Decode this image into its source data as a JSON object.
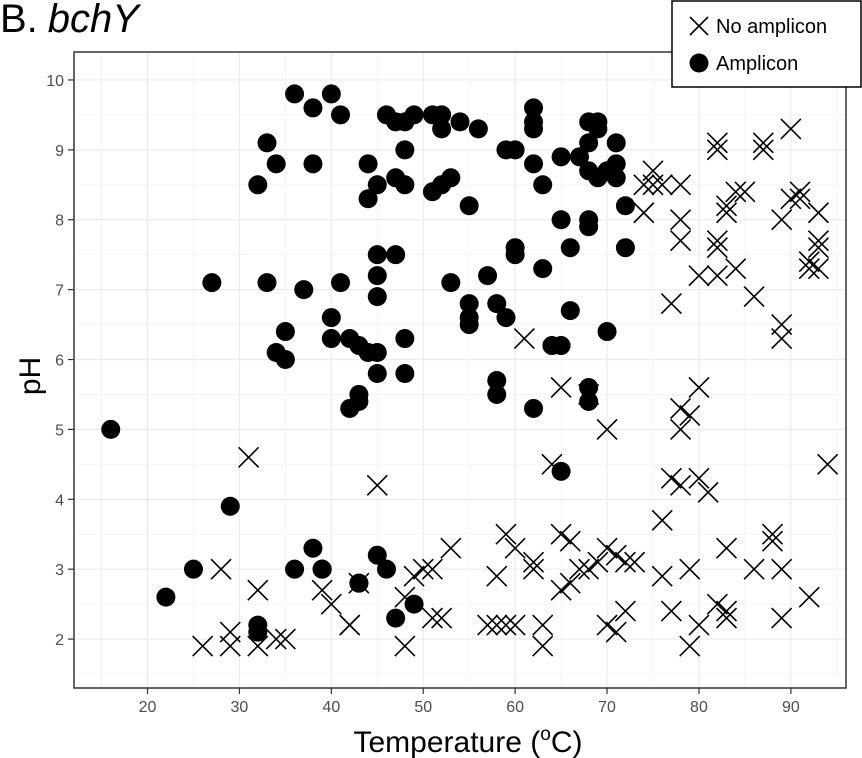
{
  "chart_data": {
    "type": "scatter",
    "title_prefix": "B.",
    "title_gene": "bchY",
    "xlabel": "Temperature (",
    "xlabel_sup": "o",
    "xlabel_unit": "C)",
    "ylabel": "pH",
    "xlim": [
      12,
      96
    ],
    "ylim": [
      1.3,
      10.4
    ],
    "xticks": [
      20,
      30,
      40,
      50,
      60,
      70,
      80,
      90
    ],
    "yticks": [
      2,
      3,
      4,
      5,
      6,
      7,
      8,
      9,
      10
    ],
    "grid": true,
    "legend_position": "top-right",
    "series": [
      {
        "name": "No amplicon",
        "marker": "x",
        "color": "#000000",
        "points": [
          [
            26,
            1.9
          ],
          [
            28,
            3.0
          ],
          [
            29,
            2.1
          ],
          [
            29,
            1.9
          ],
          [
            31,
            4.6
          ],
          [
            32,
            2.7
          ],
          [
            32,
            1.9
          ],
          [
            34,
            2.0
          ],
          [
            35,
            2.0
          ],
          [
            39,
            2.7
          ],
          [
            40,
            2.5
          ],
          [
            42,
            2.2
          ],
          [
            42,
            2.2
          ],
          [
            43,
            2.8
          ],
          [
            45,
            4.2
          ],
          [
            48,
            2.6
          ],
          [
            48,
            1.9
          ],
          [
            49,
            2.9
          ],
          [
            50,
            3.0
          ],
          [
            51,
            3.0
          ],
          [
            51,
            2.3
          ],
          [
            52,
            2.3
          ],
          [
            53,
            3.3
          ],
          [
            57,
            2.2
          ],
          [
            58,
            2.9
          ],
          [
            58,
            2.2
          ],
          [
            59,
            3.5
          ],
          [
            59,
            2.2
          ],
          [
            60,
            2.2
          ],
          [
            60,
            3.3
          ],
          [
            61,
            6.3
          ],
          [
            62,
            3.1
          ],
          [
            62,
            3.0
          ],
          [
            63,
            2.2
          ],
          [
            63,
            1.9
          ],
          [
            64,
            4.5
          ],
          [
            65,
            5.6
          ],
          [
            65,
            3.5
          ],
          [
            66,
            3.4
          ],
          [
            65,
            2.7
          ],
          [
            66,
            2.8
          ],
          [
            67,
            3.0
          ],
          [
            68,
            3.0
          ],
          [
            68,
            5.5
          ],
          [
            69,
            3.1
          ],
          [
            70,
            3.3
          ],
          [
            70,
            5.0
          ],
          [
            70,
            2.2
          ],
          [
            71,
            3.2
          ],
          [
            71,
            2.1
          ],
          [
            72,
            3.1
          ],
          [
            72,
            2.4
          ],
          [
            73,
            3.1
          ],
          [
            74,
            8.5
          ],
          [
            74,
            8.1
          ],
          [
            75,
            8.5
          ],
          [
            75,
            8.7
          ],
          [
            76,
            8.5
          ],
          [
            76,
            3.7
          ],
          [
            76,
            2.9
          ],
          [
            77,
            4.3
          ],
          [
            77,
            2.4
          ],
          [
            77,
            6.8
          ],
          [
            78,
            8.5
          ],
          [
            78,
            8.0
          ],
          [
            78,
            7.7
          ],
          [
            78,
            5.3
          ],
          [
            78,
            5.0
          ],
          [
            78,
            4.2
          ],
          [
            79,
            5.2
          ],
          [
            79,
            3.0
          ],
          [
            79,
            1.9
          ],
          [
            80,
            4.3
          ],
          [
            80,
            7.2
          ],
          [
            80,
            5.6
          ],
          [
            80,
            2.2
          ],
          [
            81,
            4.1
          ],
          [
            82,
            9.0
          ],
          [
            82,
            9.1
          ],
          [
            82,
            7.7
          ],
          [
            82,
            7.6
          ],
          [
            82,
            7.2
          ],
          [
            82,
            2.5
          ],
          [
            83,
            2.4
          ],
          [
            83,
            2.3
          ],
          [
            83,
            3.3
          ],
          [
            83,
            8.2
          ],
          [
            83,
            8.1
          ],
          [
            84,
            8.4
          ],
          [
            84,
            7.3
          ],
          [
            85,
            8.4
          ],
          [
            86,
            3.0
          ],
          [
            86,
            6.9
          ],
          [
            87,
            9.1
          ],
          [
            87,
            9.0
          ],
          [
            88,
            3.4
          ],
          [
            88,
            3.5
          ],
          [
            89,
            6.5
          ],
          [
            89,
            6.3
          ],
          [
            89,
            8.0
          ],
          [
            89,
            2.3
          ],
          [
            89,
            3.0
          ],
          [
            90,
            9.3
          ],
          [
            90,
            8.3
          ],
          [
            91,
            8.3
          ],
          [
            91,
            8.4
          ],
          [
            92,
            7.4
          ],
          [
            92,
            7.3
          ],
          [
            92,
            2.6
          ],
          [
            93,
            8.1
          ],
          [
            93,
            7.7
          ],
          [
            93,
            7.6
          ],
          [
            93,
            7.3
          ],
          [
            94,
            4.5
          ]
        ]
      },
      {
        "name": "Amplicon",
        "marker": "circle",
        "color": "#000000",
        "points": [
          [
            16,
            5.0
          ],
          [
            22,
            2.6
          ],
          [
            25,
            3.0
          ],
          [
            27,
            7.1
          ],
          [
            29,
            3.9
          ],
          [
            32,
            8.5
          ],
          [
            32,
            2.2
          ],
          [
            32,
            2.1
          ],
          [
            33,
            9.1
          ],
          [
            33,
            7.1
          ],
          [
            34,
            8.8
          ],
          [
            34,
            6.1
          ],
          [
            35,
            6.0
          ],
          [
            35,
            6.4
          ],
          [
            36,
            9.8
          ],
          [
            36,
            3.0
          ],
          [
            37,
            7.0
          ],
          [
            38,
            9.6
          ],
          [
            38,
            8.8
          ],
          [
            38,
            3.3
          ],
          [
            39,
            3.0
          ],
          [
            39,
            3.0
          ],
          [
            40,
            9.8
          ],
          [
            40,
            6.6
          ],
          [
            40,
            6.3
          ],
          [
            41,
            9.5
          ],
          [
            41,
            7.1
          ],
          [
            42,
            6.3
          ],
          [
            42,
            5.3
          ],
          [
            43,
            5.4
          ],
          [
            43,
            5.5
          ],
          [
            43,
            6.2
          ],
          [
            43,
            2.8
          ],
          [
            43,
            2.8
          ],
          [
            44,
            8.8
          ],
          [
            44,
            6.1
          ],
          [
            44,
            8.3
          ],
          [
            45,
            8.5
          ],
          [
            45,
            7.5
          ],
          [
            45,
            7.2
          ],
          [
            45,
            6.9
          ],
          [
            45,
            6.1
          ],
          [
            45,
            5.8
          ],
          [
            45,
            3.2
          ],
          [
            46,
            9.5
          ],
          [
            46,
            3.0
          ],
          [
            47,
            9.4
          ],
          [
            47,
            8.6
          ],
          [
            47,
            7.5
          ],
          [
            47,
            2.3
          ],
          [
            48,
            9.0
          ],
          [
            48,
            8.5
          ],
          [
            48,
            9.4
          ],
          [
            48,
            5.8
          ],
          [
            48,
            6.3
          ],
          [
            49,
            9.5
          ],
          [
            49,
            2.5
          ],
          [
            51,
            9.5
          ],
          [
            51,
            8.4
          ],
          [
            52,
            9.5
          ],
          [
            52,
            9.3
          ],
          [
            52,
            8.5
          ],
          [
            53,
            8.6
          ],
          [
            53,
            7.1
          ],
          [
            54,
            9.4
          ],
          [
            55,
            8.2
          ],
          [
            55,
            6.8
          ],
          [
            55,
            6.6
          ],
          [
            55,
            6.5
          ],
          [
            56,
            9.3
          ],
          [
            57,
            7.2
          ],
          [
            58,
            6.8
          ],
          [
            58,
            5.7
          ],
          [
            58,
            5.5
          ],
          [
            59,
            6.6
          ],
          [
            59,
            9.0
          ],
          [
            60,
            9.0
          ],
          [
            60,
            7.6
          ],
          [
            60,
            7.5
          ],
          [
            62,
            9.6
          ],
          [
            62,
            9.4
          ],
          [
            62,
            9.3
          ],
          [
            62,
            8.8
          ],
          [
            62,
            5.3
          ],
          [
            63,
            7.3
          ],
          [
            63,
            8.5
          ],
          [
            64,
            6.2
          ],
          [
            65,
            8.9
          ],
          [
            65,
            8.0
          ],
          [
            65,
            6.2
          ],
          [
            65,
            4.4
          ],
          [
            66,
            6.7
          ],
          [
            66,
            7.6
          ],
          [
            67,
            8.9
          ],
          [
            68,
            9.4
          ],
          [
            68,
            9.1
          ],
          [
            68,
            8.7
          ],
          [
            68,
            8.0
          ],
          [
            68,
            7.9
          ],
          [
            68,
            5.6
          ],
          [
            68,
            5.4
          ],
          [
            69,
            9.4
          ],
          [
            69,
            9.3
          ],
          [
            69,
            8.6
          ],
          [
            70,
            8.7
          ],
          [
            70,
            6.4
          ],
          [
            71,
            9.1
          ],
          [
            71,
            8.8
          ],
          [
            71,
            8.6
          ],
          [
            72,
            8.2
          ],
          [
            72,
            7.6
          ]
        ]
      }
    ]
  }
}
